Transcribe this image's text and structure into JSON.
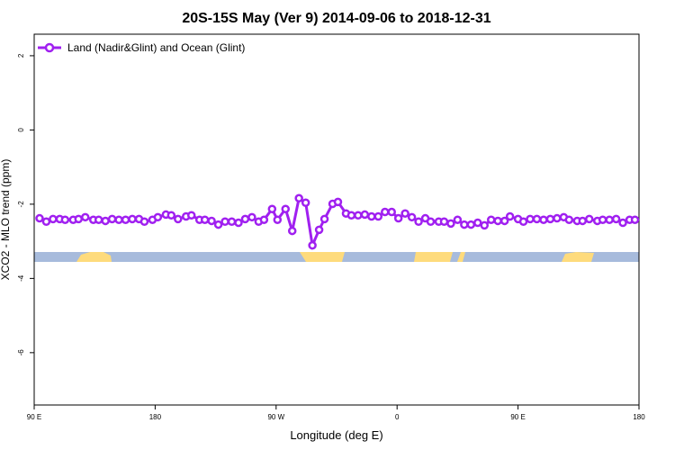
{
  "chart_data": {
    "type": "line",
    "title": "20S-15S May (Ver 9)   2014-09-06 to 2018-12-31",
    "x_label": "Longitude (deg E)",
    "y_label": "XCO2 - MLO trend (ppm)",
    "xlim": [
      90,
      540
    ],
    "ylim": [
      -7.41,
      2.58
    ],
    "xticks": [
      {
        "value": 90,
        "label": "90 E"
      },
      180,
      {
        "value": 270,
        "label": "90 W"
      },
      {
        "value": 360,
        "label": "0"
      },
      {
        "value": 450,
        "label": "90 E"
      },
      {
        "value": 540,
        "label": "180"
      }
    ],
    "yticks": [
      -6,
      -4,
      -2,
      0,
      2
    ],
    "legend": "top-left",
    "series": [
      {
        "name": "Land (Nadir&Glint) and Ocean (Glint)",
        "color": "#a020f0",
        "x": [
          94,
          99,
          104,
          109,
          113,
          119,
          123,
          128,
          134,
          138,
          143,
          148,
          153,
          158,
          163,
          168,
          172,
          178,
          182,
          188,
          192,
          197,
          203,
          207,
          213,
          217,
          222,
          227,
          232,
          237,
          242,
          247,
          252,
          257,
          261,
          267,
          271,
          277,
          282,
          287,
          292,
          297,
          302,
          306,
          312,
          316,
          322,
          326,
          331,
          336,
          341,
          346,
          351,
          356,
          361,
          366,
          371,
          376,
          381,
          385,
          391,
          395,
          400,
          405,
          410,
          415,
          420,
          425,
          430,
          435,
          440,
          444,
          450,
          454,
          459,
          464,
          469,
          474,
          479,
          484,
          488,
          494,
          498,
          503,
          509,
          513,
          518,
          523,
          528,
          533,
          537
        ],
        "values": [
          -2.38,
          -2.47,
          -2.4,
          -2.4,
          -2.42,
          -2.42,
          -2.4,
          -2.35,
          -2.42,
          -2.42,
          -2.45,
          -2.4,
          -2.42,
          -2.42,
          -2.4,
          -2.4,
          -2.47,
          -2.42,
          -2.35,
          -2.28,
          -2.3,
          -2.4,
          -2.33,
          -2.3,
          -2.42,
          -2.42,
          -2.45,
          -2.55,
          -2.47,
          -2.47,
          -2.5,
          -2.4,
          -2.35,
          -2.47,
          -2.42,
          -2.13,
          -2.42,
          -2.13,
          -2.72,
          -1.84,
          -1.96,
          -3.11,
          -2.69,
          -2.4,
          -1.99,
          -1.94,
          -2.25,
          -2.3,
          -2.3,
          -2.28,
          -2.33,
          -2.33,
          -2.21,
          -2.21,
          -2.38,
          -2.25,
          -2.35,
          -2.47,
          -2.38,
          -2.47,
          -2.47,
          -2.47,
          -2.52,
          -2.42,
          -2.55,
          -2.55,
          -2.5,
          -2.57,
          -2.42,
          -2.45,
          -2.45,
          -2.33,
          -2.4,
          -2.47,
          -2.4,
          -2.4,
          -2.42,
          -2.4,
          -2.38,
          -2.35,
          -2.42,
          -2.45,
          -2.45,
          -2.4,
          -2.45,
          -2.42,
          -2.42,
          -2.4,
          -2.5,
          -2.42,
          -2.42
        ]
      }
    ]
  }
}
